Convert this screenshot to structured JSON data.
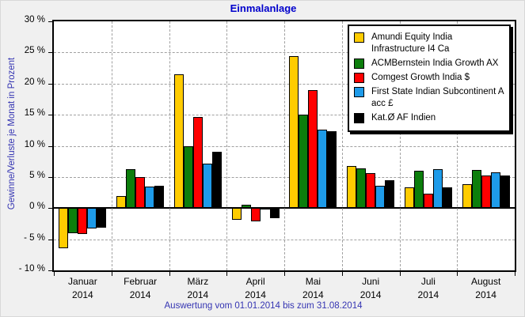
{
  "title": "Einmalanlage",
  "footer": "Auswertung vom 01.01.2014 bis zum 31.08.2014",
  "colors": {
    "window_background": "#F0F0F0",
    "plot_background": "#FFFFFF",
    "title_text": "#0000CC",
    "axis_text": "#3434B2",
    "gridline": "#A0A0A0"
  },
  "chart_data": {
    "type": "bar",
    "title": "Einmalanlage",
    "xlabel": "",
    "ylabel": "Gewinne/Verluste je Monat in Prozent",
    "ylim": [
      -10,
      30
    ],
    "yticks": [
      30,
      25,
      20,
      15,
      10,
      5,
      0,
      -5,
      -10
    ],
    "ytick_labels": [
      "30 %",
      "25 %",
      "20 %",
      "15 %",
      "10 %",
      "5 %",
      "0 %",
      "- 5 %",
      "- 10 %"
    ],
    "grid": true,
    "legend_position": "top-right",
    "categories": [
      "Januar",
      "Februar",
      "März",
      "April",
      "Mai",
      "Juni",
      "Juli",
      "August"
    ],
    "category_year": "2014",
    "annotation": "Auswertung vom 01.01.2014 bis zum 31.08.2014",
    "series": [
      {
        "name": "Amundi Equity India Infrastructure I4 Ca",
        "color": "#FFCC00",
        "values": [
          -6.4,
          2.0,
          21.5,
          -1.9,
          24.4,
          6.7,
          3.3,
          3.9
        ]
      },
      {
        "name": "ACMBernstein India Growth AX",
        "color": "#0C7E0C",
        "values": [
          -4.0,
          6.3,
          9.9,
          0.6,
          15.0,
          6.4,
          6.0,
          6.1
        ]
      },
      {
        "name": "Comgest Growth India $",
        "color": "#FF0000",
        "values": [
          -4.1,
          5.0,
          14.6,
          -2.1,
          18.9,
          5.6,
          2.3,
          5.2
        ]
      },
      {
        "name": "First State Indian Subcontinent A acc £",
        "color": "#1E9BE9",
        "values": [
          -3.3,
          3.4,
          7.2,
          -0.2,
          12.6,
          3.6,
          6.3,
          5.8
        ]
      },
      {
        "name": "Kat.Ø AF Indien",
        "color": "#000000",
        "values": [
          -3.1,
          3.6,
          9.0,
          -1.6,
          12.4,
          4.5,
          3.3,
          5.2
        ]
      }
    ]
  }
}
